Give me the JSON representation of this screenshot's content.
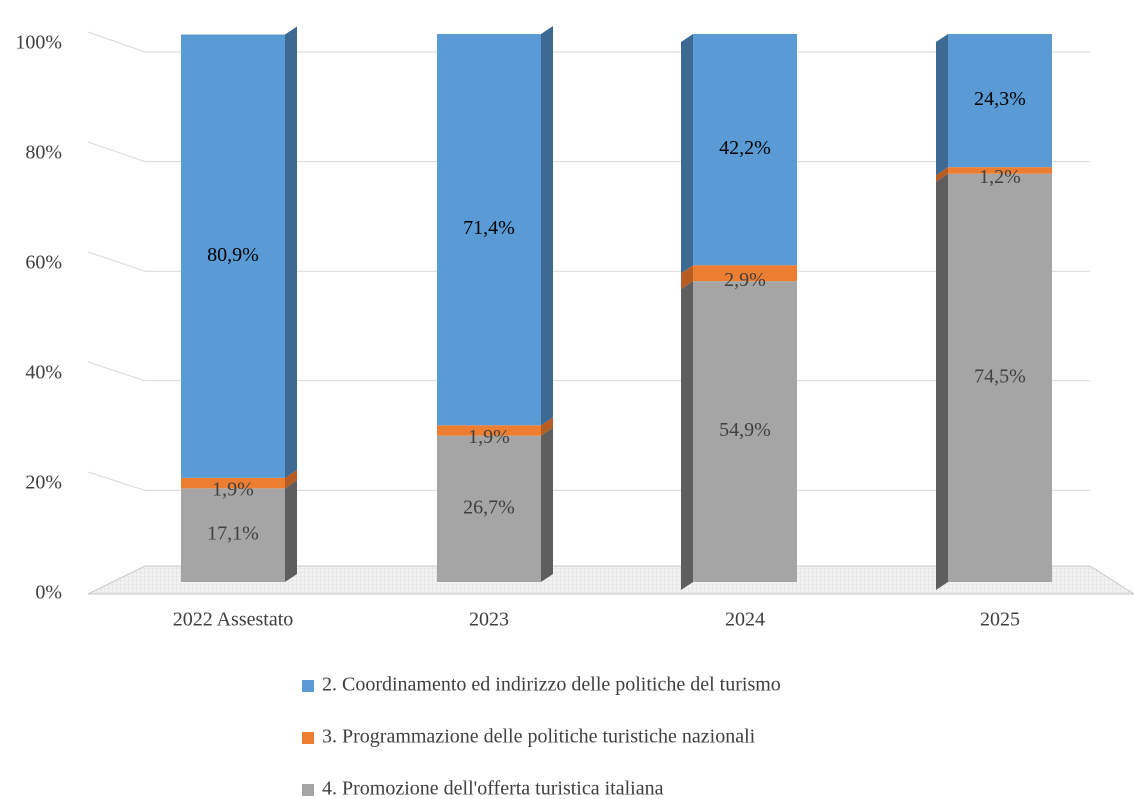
{
  "chart_data": {
    "type": "stacked-bar-3d",
    "categories": [
      "2022 Assestato",
      "2023",
      "2024",
      "2025"
    ],
    "series": [
      {
        "name": "2. Coordinamento ed indirizzo delle politiche del turismo",
        "color": "#5b9bd5",
        "side": "#3d6a93",
        "values": [
          80.9,
          71.4,
          42.2,
          24.3
        ],
        "value_labels": [
          "80,9%",
          "71,4%",
          "42,2%",
          "24,3%"
        ]
      },
      {
        "name": "3. Programmazione delle politiche turistiche nazionali",
        "color": "#ed7d31",
        "side": "#b55d22",
        "values": [
          1.9,
          1.9,
          2.9,
          1.2
        ],
        "value_labels": [
          "1,9%",
          "1,9%",
          "2,9%",
          "1,2%"
        ]
      },
      {
        "name": "4. Promozione dell'offerta turistica italiana",
        "color": "#a5a5a5",
        "side": "#5e5e5e",
        "values": [
          17.1,
          26.7,
          54.9,
          74.5
        ],
        "value_labels": [
          "17,1%",
          "26,7%",
          "54,9%",
          "74,5%"
        ]
      }
    ],
    "ylim": [
      0,
      100
    ],
    "yticks": [
      {
        "value": 0,
        "label": "0%"
      },
      {
        "value": 20,
        "label": "20%"
      },
      {
        "value": 40,
        "label": "40%"
      },
      {
        "value": 60,
        "label": "60%"
      },
      {
        "value": 80,
        "label": "80%"
      },
      {
        "value": 100,
        "label": "100%"
      }
    ],
    "grid": true
  }
}
